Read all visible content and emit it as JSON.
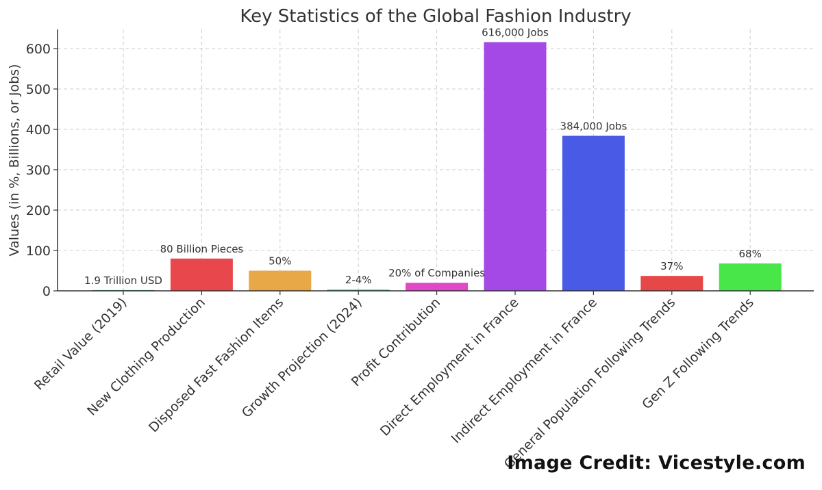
{
  "chart_data": {
    "type": "bar",
    "title": "Key Statistics of the Global Fashion Industry",
    "xlabel": "",
    "ylabel": "Values (in %, Billions, or Jobs)",
    "ylim": [
      0,
      650
    ],
    "yticks": [
      0,
      100,
      200,
      300,
      400,
      500,
      600
    ],
    "grid": true,
    "categories": [
      "Retail Value (2019)",
      "New Clothing Production",
      "Disposed Fast Fashion Items",
      "Growth Projection (2024)",
      "Profit Contribution",
      "Direct Employment in France",
      "Indirect Employment in France",
      "General Population Following Trends",
      "Gen Z Following Trends"
    ],
    "values": [
      1.9,
      80,
      50,
      3,
      20,
      616,
      384,
      37,
      68
    ],
    "data_labels": [
      "1.9 Trillion USD",
      "80 Billion Pieces",
      "50%",
      "2-4%",
      "20% of Companies",
      "616,000 Jobs",
      "384,000 Jobs",
      "37%",
      "68%"
    ],
    "colors": [
      "#3bb0a5",
      "#e8484c",
      "#e8a848",
      "#3bbf8f",
      "#e048c8",
      "#a448e6",
      "#485ae6",
      "#e64848",
      "#48e648"
    ]
  },
  "credit": "Image Credit: Vicestyle.com"
}
